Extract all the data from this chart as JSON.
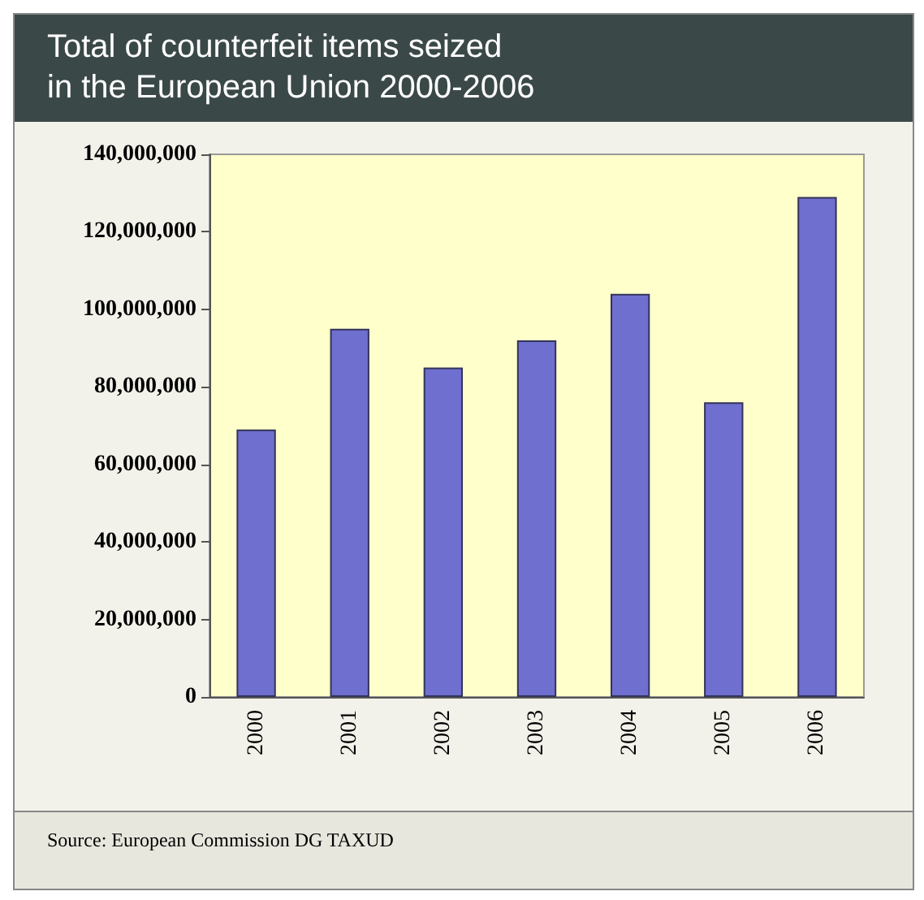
{
  "chart_data": {
    "type": "bar",
    "title": "Total of counterfeit items seized\nin the European Union 2000-2006",
    "categories": [
      "2000",
      "2001",
      "2002",
      "2003",
      "2004",
      "2005",
      "2006"
    ],
    "values": [
      69000000,
      95000000,
      85000000,
      92000000,
      104000000,
      76000000,
      129000000
    ],
    "color": "#6f6fcf",
    "ylim": [
      0,
      140000000
    ],
    "yticks": [
      0,
      {
        "value": 20000000,
        "label": "20,000,000"
      },
      {
        "value": 40000000,
        "label": "40,000,000"
      },
      {
        "value": 60000000,
        "label": "60,000,000"
      },
      {
        "value": 80000000,
        "label": "80,000,000"
      },
      {
        "value": 100000000,
        "label": "100,000,000"
      },
      {
        "value": 120000000,
        "label": "120,000,000"
      },
      {
        "value": 140000000,
        "label": "140,000,000"
      }
    ],
    "grid": false,
    "annotations": [
      "Source: European Commission DG TAXUD"
    ]
  }
}
